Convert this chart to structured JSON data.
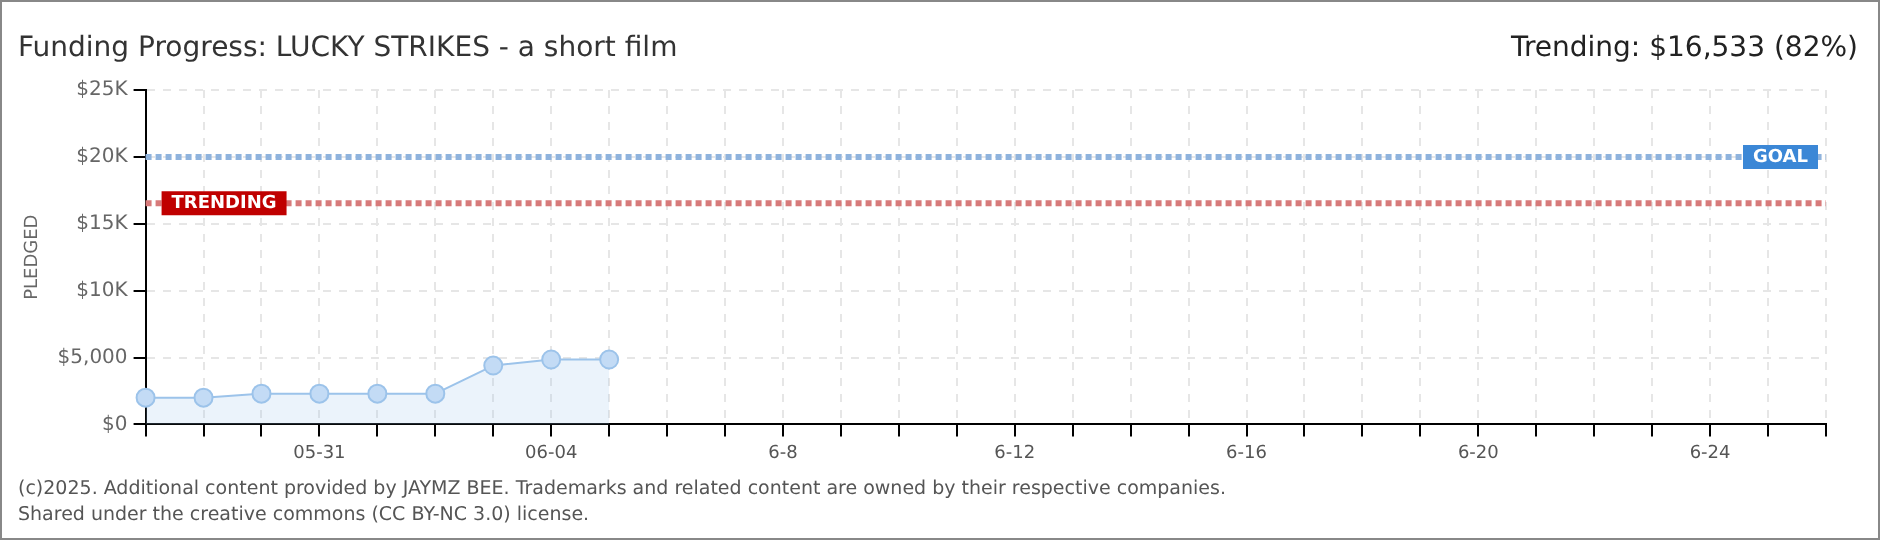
{
  "chart_data": {
    "type": "area",
    "title": "Funding Progress: LUCKY STRIKES - a short film",
    "subtitle": "Trending: $16,533 (82%)",
    "ylabel": "PLEDGED",
    "categories": [
      null,
      null,
      null,
      "05-31",
      null,
      null,
      null,
      "06-04",
      null,
      null,
      null,
      "6-8",
      null,
      null,
      null,
      "6-12",
      null,
      null,
      null,
      "6-16",
      null,
      null,
      null,
      "6-20",
      null,
      null,
      null,
      "6-24",
      null,
      null
    ],
    "series": [
      {
        "color": "#9cc3ea",
        "values": [
          2000,
          2000,
          2300,
          2300,
          2300,
          2300,
          4400,
          4850,
          4850,
          null,
          null,
          null,
          null,
          null,
          null,
          null,
          null,
          null,
          null,
          null,
          null,
          null,
          null,
          null,
          null,
          null,
          null,
          null,
          null,
          null
        ]
      }
    ],
    "ylim": [
      0,
      25000
    ],
    "yticks": [
      {
        "value": 0,
        "label": "$0"
      },
      {
        "value": 5000,
        "label": "$5,000"
      },
      {
        "value": 10000,
        "label": "$10K"
      },
      {
        "value": 15000,
        "label": "$15K"
      },
      {
        "value": 20000,
        "label": "$20K"
      },
      {
        "value": 25000,
        "label": "$25K"
      }
    ],
    "ref_lines": [
      {
        "axis": "y",
        "value": 20000,
        "label": "GOAL",
        "color": "#8fb3dd",
        "line_style": "dotted"
      },
      {
        "axis": "y",
        "value": 16533,
        "label": "TRENDING",
        "color": "#d77a7a",
        "line_style": "dotted"
      }
    ],
    "grid": true,
    "legend": false,
    "marker": "circle",
    "annotations": [
      "(c)2025. Additional content provided by JAYMZ BEE. Trademarks and related content are owned by their respective companies.",
      "Shared under the creative commons (CC BY-NC 3.0) license."
    ]
  }
}
